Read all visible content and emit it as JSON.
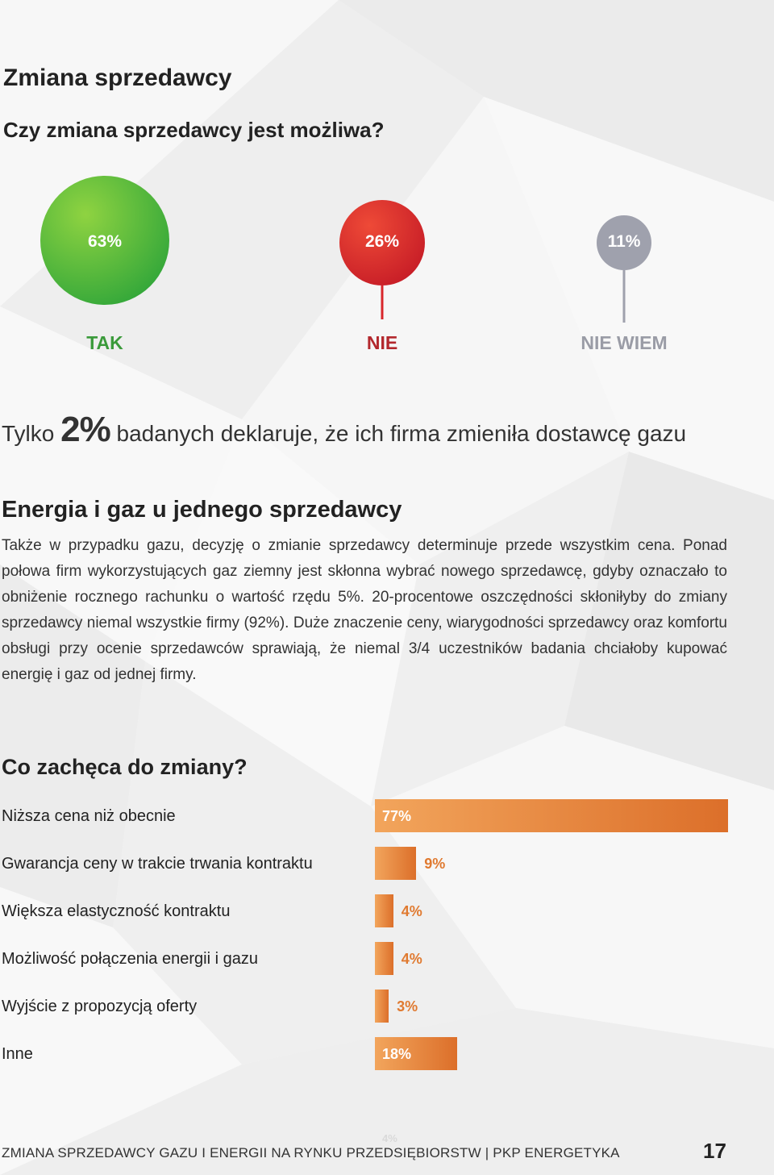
{
  "heading": "Zmiana sprzedawcy",
  "subheading": "Czy zmiana sprzedawcy jest możliwa?",
  "answers": [
    {
      "value": "63%",
      "label": "TAK",
      "color": "#4fb82d",
      "label_color": "#3a9a3a"
    },
    {
      "value": "26%",
      "label": "NIE",
      "color": "#d8262b",
      "label_color": "#b3282d"
    },
    {
      "value": "11%",
      "label": "NIE WIEM",
      "color": "#9fa1ad",
      "label_color": "#9a9ca6"
    }
  ],
  "stat": {
    "prefix": "Tylko",
    "value": "2%",
    "suffix": "badanych deklaruje, że ich firma zmieniła dostawcę gazu"
  },
  "section2": {
    "title": "Energia i gaz u jednego sprzedawcy",
    "body": "Także w przypadku gazu, decyzję o zmianie sprzedawcy determinuje przede wszystkim cena. Ponad połowa firm wykorzystujących gaz ziemny jest skłonna wybrać nowego sprzedawcę, gdyby oznaczało to obniżenie rocznego rachunku o wartość rzędu 5%. 20-procentowe oszczędności skłoniłyby do zmiany sprzedawcy niemal wszystkie firmy (92%). Duże znaczenie ceny, wiarygodności sprzedawcy oraz komfortu obsługi przy ocenie sprzedawców sprawiają, że niemal 3/4 uczestników badania chciałoby kupować energię i gaz od jednej firmy."
  },
  "section3": {
    "title": "Co zachęca do zmiany?"
  },
  "chart_data": {
    "type": "bar",
    "orientation": "horizontal",
    "categories": [
      "Niższa cena niż obecnie",
      "Gwarancja ceny w trakcie trwania kontraktu",
      "Większa elastyczność kontraktu",
      "Możliwość połączenia energii i gazu",
      "Wyjście z propozycją oferty",
      "Inne"
    ],
    "values": [
      77,
      9,
      4,
      4,
      3,
      18
    ],
    "value_labels": [
      "77%",
      "9%",
      "4%",
      "4%",
      "3%",
      "18%"
    ],
    "unit": "%",
    "xlim": [
      0,
      77
    ],
    "colors": {
      "start": "#f2a55c",
      "end": "#dc6f2a"
    },
    "grid": false
  },
  "footer": {
    "text": "ZMIANA SPRZEDAWCY GAZU I ENERGII NA RYNKU PRZEDSIĘBIORSTW | PKP ENERGETYKA",
    "ghost": "4%",
    "page": "17"
  }
}
